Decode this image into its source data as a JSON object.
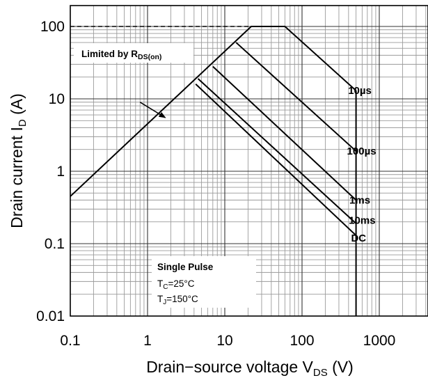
{
  "chart_data": {
    "type": "line",
    "title": "",
    "xlabel": "Drain−source voltage V",
    "xlabel_sub": "DS",
    "xlabel_unit": " (V)",
    "ylabel": "Drain current I",
    "ylabel_sub": "D",
    "ylabel_unit": " (A)",
    "x_scale": "log",
    "y_scale": "log",
    "xlim": [
      0.1,
      5000
    ],
    "ylim": [
      0.01,
      200
    ],
    "grid": true,
    "x_ticks": [
      {
        "value": 0.1,
        "label": "0.1"
      },
      {
        "value": 1,
        "label": "1"
      },
      {
        "value": 10,
        "label": "10"
      },
      {
        "value": 100,
        "label": "100"
      },
      {
        "value": 1000,
        "label": "1000"
      }
    ],
    "y_ticks": [
      {
        "value": 100,
        "label": "100"
      },
      {
        "value": 10,
        "label": "10"
      },
      {
        "value": 1,
        "label": "1"
      },
      {
        "value": 0.1,
        "label": "0.1"
      },
      {
        "value": 0.01,
        "label": "0.01"
      }
    ],
    "series": [
      {
        "name": "",
        "style": "solid",
        "x": [
          0.1,
          22,
          60,
          500
        ],
        "y": [
          0.45,
          100,
          100,
          13
        ]
      },
      {
        "name": "",
        "style": "dashed",
        "x": [
          0.1,
          22
        ],
        "y": [
          100,
          100
        ]
      },
      {
        "name": "",
        "style": "solid",
        "x": [
          14,
          500
        ],
        "y": [
          60,
          1.9
        ]
      },
      {
        "name": "",
        "style": "solid",
        "x": [
          7,
          500
        ],
        "y": [
          28,
          0.4
        ]
      },
      {
        "name": "",
        "style": "solid",
        "x": [
          4.5,
          500
        ],
        "y": [
          19,
          0.19
        ]
      },
      {
        "name": "",
        "style": "solid",
        "x": [
          4.2,
          500
        ],
        "y": [
          16,
          0.13
        ]
      },
      {
        "name": "",
        "style": "solid",
        "x": [
          500,
          500
        ],
        "y": [
          0.01,
          13
        ]
      }
    ],
    "curve_labels": [
      {
        "text": "10µs",
        "x": 560,
        "y": 13
      },
      {
        "text": "100µs",
        "x": 590,
        "y": 1.9
      },
      {
        "text": "1ms",
        "x": 560,
        "y": 0.4
      },
      {
        "text": "10ms",
        "x": 600,
        "y": 0.21
      },
      {
        "text": "DC",
        "x": 540,
        "y": 0.12
      }
    ],
    "annotation": {
      "text": "Limited by R",
      "sub": "DS(on)",
      "arrow_from": [
        0.8,
        9
      ],
      "arrow_to": [
        1.7,
        5.5
      ]
    },
    "note_lines": [
      {
        "text": "Single Pulse",
        "sub": "",
        "tail": "",
        "bold": true
      },
      {
        "text": "T",
        "sub": "C",
        "tail": "=25°C",
        "bold": false
      },
      {
        "text": "T",
        "sub": "J",
        "tail": "=150°C",
        "bold": false
      }
    ]
  }
}
